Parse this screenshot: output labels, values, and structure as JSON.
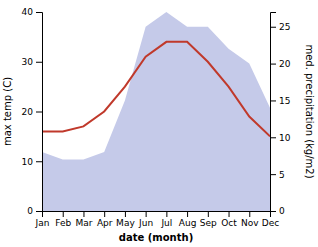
{
  "chart_data": {
    "type": "line",
    "categories": [
      "Jan",
      "Feb",
      "Mar",
      "Apr",
      "May",
      "Jun",
      "Jul",
      "Aug",
      "Sep",
      "Oct",
      "Nov",
      "Dec"
    ],
    "series": [
      {
        "type": "area",
        "axis": "y2",
        "color": "#c5cae9",
        "values": [
          8,
          7,
          7,
          8,
          15,
          25,
          27,
          25,
          25,
          22,
          20,
          14
        ]
      },
      {
        "type": "line",
        "color": "#c0392b",
        "values": [
          16,
          16,
          17,
          20,
          25,
          31,
          34,
          34,
          30,
          25,
          19,
          15
        ]
      }
    ],
    "x_label": "date (month)",
    "y_label": "max temp (C)",
    "y2_label": "med. precipitation (kg/m2)",
    "ylim": [
      0,
      40
    ],
    "yticks": [
      0,
      10,
      20,
      30,
      40
    ],
    "y2lim": [
      0,
      27
    ],
    "y2ticks": [
      0,
      5,
      10,
      15,
      20,
      25
    ],
    "grid": false
  }
}
